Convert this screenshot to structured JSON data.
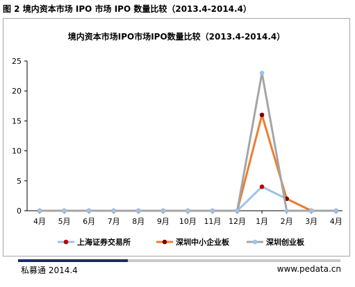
{
  "figure": {
    "caption": "图 2  境内资本市场 IPO 市场 IPO 数量比较（2013.4-2014.4）"
  },
  "footer": {
    "source": "私募通  2014.4",
    "website": "www.pedata.cn"
  },
  "chart_data": {
    "type": "line",
    "title": "境内资本市场IPO市场IPO数量比较（2013.4-2014.4）",
    "categories": [
      "4月",
      "5月",
      "6月",
      "7月",
      "8月",
      "9月",
      "10月",
      "11月",
      "12月",
      "1月",
      "2月",
      "3月",
      "4月"
    ],
    "ylim": [
      0,
      25
    ],
    "yticks": [
      0,
      5,
      10,
      15,
      20,
      25
    ],
    "grid": false,
    "legend_position": "bottom",
    "series": [
      {
        "name": "上海证券交易所",
        "color": "#9dc3e6",
        "marker_color": "#c00000",
        "values": [
          0,
          0,
          0,
          0,
          0,
          0,
          0,
          0,
          0,
          4,
          2,
          0,
          0
        ]
      },
      {
        "name": "深圳中小企业板",
        "color": "#ed7d31",
        "marker_color": "#7f0000",
        "values": [
          0,
          0,
          0,
          0,
          0,
          0,
          0,
          0,
          0,
          16,
          2,
          0,
          0
        ]
      },
      {
        "name": "深圳创业板",
        "color": "#a5a5a5",
        "marker_color": "#9dc3e6",
        "values": [
          0,
          0,
          0,
          0,
          0,
          0,
          0,
          0,
          0,
          23,
          0,
          0,
          0
        ]
      }
    ]
  }
}
